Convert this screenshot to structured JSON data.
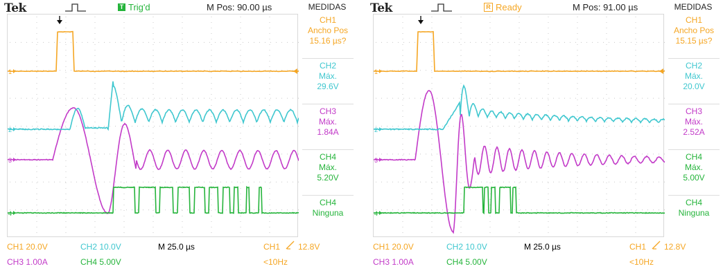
{
  "colors": {
    "ch1": "#f5a623",
    "ch2": "#3fc7cf",
    "ch3": "#c23ac8",
    "ch4": "#25b43b",
    "grid": "#dcdcdc",
    "text": "#222222"
  },
  "left": {
    "brand": "Tek",
    "status_icon": "T",
    "status_text": "Trig'd",
    "mpos": "M Pos: 90.00 µs",
    "menu_title": "MEDIDAS",
    "measurements": [
      {
        "l1": "CH1",
        "l2": "Ancho Pos",
        "l3": "15.16 µs?",
        "channel": "ch1"
      },
      {
        "l1": "CH2",
        "l2": "Máx.",
        "l3": "29.6V",
        "channel": "ch2"
      },
      {
        "l1": "CH3",
        "l2": "Máx.",
        "l3": "1.84A",
        "channel": "ch3"
      },
      {
        "l1": "CH4",
        "l2": "Máx.",
        "l3": "5.20V",
        "channel": "ch4"
      },
      {
        "l1": "CH4",
        "l2": "Ninguna",
        "l3": "",
        "channel": "ch4"
      }
    ],
    "bottom": {
      "ch1": "CH1  20.0V",
      "ch2": "CH2  10.0V",
      "ch3": "CH3  1.00A",
      "ch4": "CH4  5.00V",
      "time": "M 25.0 µs",
      "trig_ch": "CH1",
      "trig_level": "12.8V",
      "freq": "<10Hz"
    }
  },
  "right": {
    "brand": "Tek",
    "status_icon": "R",
    "status_text": "Ready",
    "mpos": "M Pos: 91.00 µs",
    "menu_title": "MEDIDAS",
    "measurements": [
      {
        "l1": "CH1",
        "l2": "Ancho Pos",
        "l3": "15.15 µs?",
        "channel": "ch1"
      },
      {
        "l1": "CH2",
        "l2": "Máx.",
        "l3": "20.0V",
        "channel": "ch2"
      },
      {
        "l1": "CH3",
        "l2": "Máx.",
        "l3": "2.52A",
        "channel": "ch3"
      },
      {
        "l1": "CH4",
        "l2": "Máx.",
        "l3": "5.00V",
        "channel": "ch4"
      },
      {
        "l1": "CH4",
        "l2": "Ninguna",
        "l3": "",
        "channel": "ch4"
      }
    ],
    "bottom": {
      "ch1": "CH1  20.0V",
      "ch2": "CH2  10.0V",
      "ch3": "CH3  1.00A",
      "ch4": "CH4  5.00V",
      "time": "M 25.0 µs",
      "trig_ch": "CH1",
      "trig_level": "12.8V",
      "freq": "<10Hz"
    }
  },
  "channel_markers": [
    "1",
    "2",
    "3",
    "4"
  ],
  "icons": {
    "trigger": "pulse-trigger-icon",
    "trigger_pos": "trigger-position-arrow-icon",
    "level": "trigger-level-arrow-icon",
    "edge": "rising-edge-icon"
  }
}
